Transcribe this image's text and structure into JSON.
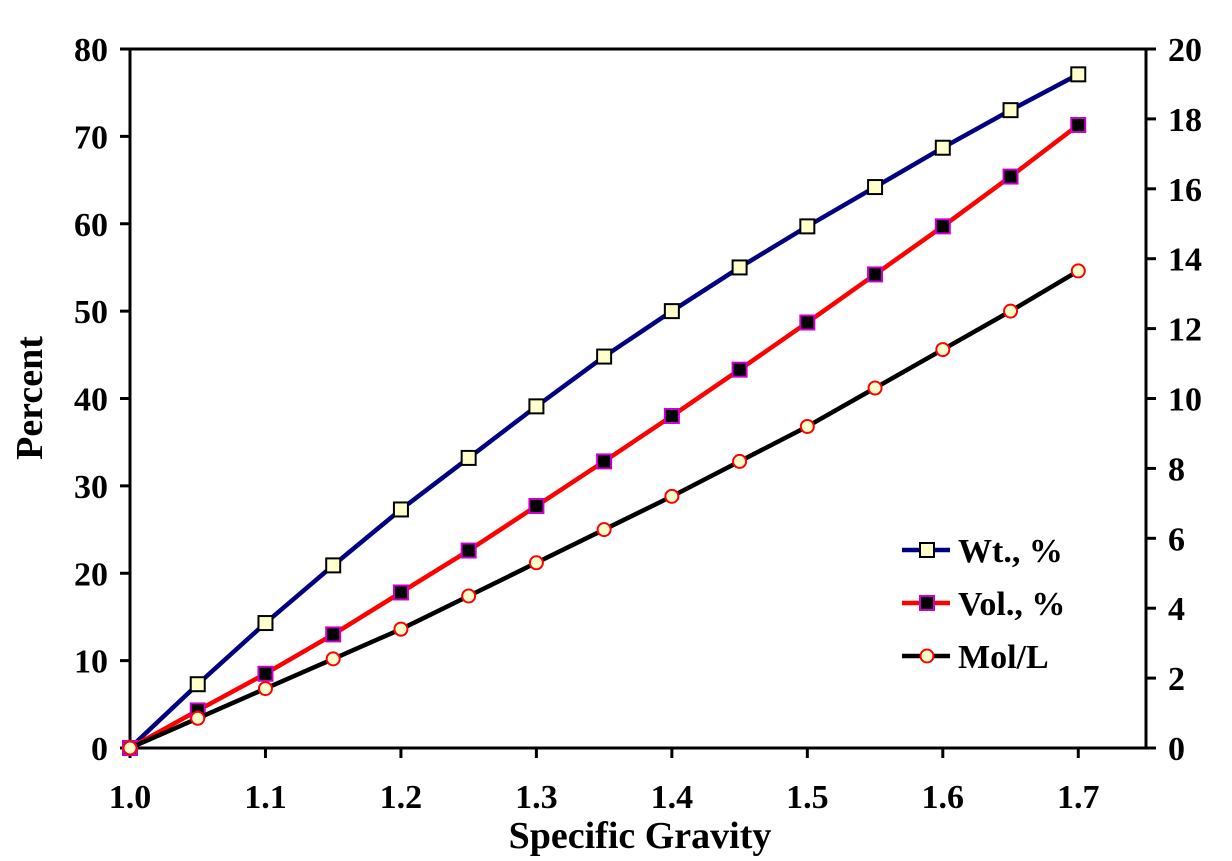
{
  "chart_data": {
    "type": "line",
    "title": "",
    "xlabel": "Specific Gravity",
    "ylabel": "Percent",
    "y2label": "",
    "xlim": [
      1.0,
      1.75
    ],
    "ylim": [
      0,
      80
    ],
    "y2lim": [
      0,
      20
    ],
    "x_ticks": [
      "1.0",
      "1.1",
      "1.2",
      "1.3",
      "1.4",
      "1.5",
      "1.6",
      "1.7"
    ],
    "x_tick_values": [
      1.0,
      1.1,
      1.2,
      1.3,
      1.4,
      1.5,
      1.6,
      1.7
    ],
    "y_ticks": [
      "0",
      "10",
      "20",
      "30",
      "40",
      "50",
      "60",
      "70",
      "80"
    ],
    "y_tick_values": [
      0,
      10,
      20,
      30,
      40,
      50,
      60,
      70,
      80
    ],
    "y2_ticks": [
      "0",
      "2",
      "4",
      "6",
      "8",
      "10",
      "12",
      "14",
      "16",
      "18",
      "20"
    ],
    "y2_tick_values": [
      0,
      2,
      4,
      6,
      8,
      10,
      12,
      14,
      16,
      18,
      20
    ],
    "grid": false,
    "legend_position": "lower-right",
    "x": [
      1.0,
      1.05,
      1.1,
      1.15,
      1.2,
      1.25,
      1.3,
      1.35,
      1.4,
      1.45,
      1.5,
      1.55,
      1.6,
      1.65,
      1.7
    ],
    "series": [
      {
        "name": "Wt., %",
        "axis": "left",
        "line_color": "#000080",
        "marker": "square",
        "marker_fill": "#ffffcc",
        "marker_stroke": "#000000",
        "values": [
          0,
          7.3,
          14.3,
          20.9,
          27.3,
          33.2,
          39.1,
          44.8,
          50.0,
          55.0,
          59.7,
          64.2,
          68.7,
          73.0,
          77.1
        ]
      },
      {
        "name": "Vol., %",
        "axis": "left",
        "line_color": "#ff0000",
        "marker": "square",
        "marker_fill": "#000000",
        "marker_stroke": "#cc00cc",
        "values": [
          0,
          4.3,
          8.5,
          13.0,
          17.8,
          22.6,
          27.7,
          32.8,
          38.0,
          43.3,
          48.7,
          54.2,
          59.7,
          65.4,
          71.3
        ]
      },
      {
        "name": "Mol/L",
        "axis": "right",
        "line_color": "#000000",
        "marker": "circle",
        "marker_fill": "#ffffcc",
        "marker_stroke": "#ff0000",
        "values": [
          0,
          0.85,
          1.7,
          2.55,
          3.4,
          4.35,
          5.3,
          6.25,
          7.2,
          8.2,
          9.2,
          10.3,
          11.4,
          12.5,
          13.65
        ]
      }
    ]
  }
}
